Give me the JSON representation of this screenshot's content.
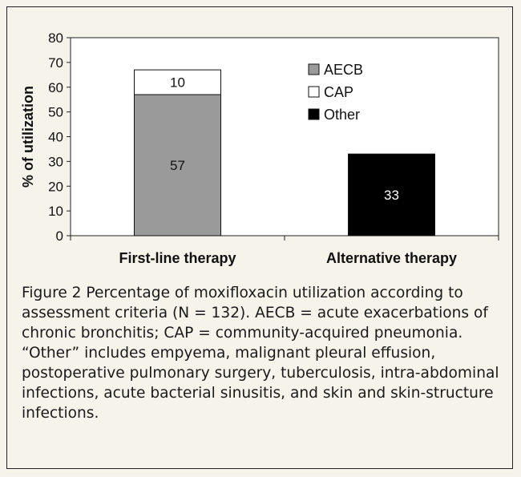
{
  "chart_data": {
    "type": "bar",
    "stacked": true,
    "categories": [
      "First-line therapy",
      "Alternative therapy"
    ],
    "series": [
      {
        "name": "AECB",
        "color": "#9a9a9a",
        "values": [
          57,
          0
        ],
        "labels": [
          "57",
          ""
        ]
      },
      {
        "name": "CAP",
        "color": "#ffffff",
        "values": [
          10,
          0
        ],
        "labels": [
          "10",
          ""
        ]
      },
      {
        "name": "Other",
        "color": "#000000",
        "values": [
          0,
          33
        ],
        "labels": [
          "",
          "33"
        ]
      }
    ],
    "ylabel": "% of utilization",
    "ylim": [
      0,
      80
    ],
    "yticks": [
      0,
      10,
      20,
      30,
      40,
      50,
      60,
      70,
      80
    ],
    "grid": false,
    "legend_position": "top-right"
  },
  "caption": "Figure 2  Percentage of moxifloxacin utilization according to assessment criteria (N = 132).  AECB = acute exacerbations of chronic bronchitis; CAP = community-acquired pneumonia. “Other” includes empyema, malignant pleural effusion, postoperative pulmonary surgery, tuberculosis, intra-abdominal infections, acute bacterial sinusitis, and skin and skin-structure infections."
}
